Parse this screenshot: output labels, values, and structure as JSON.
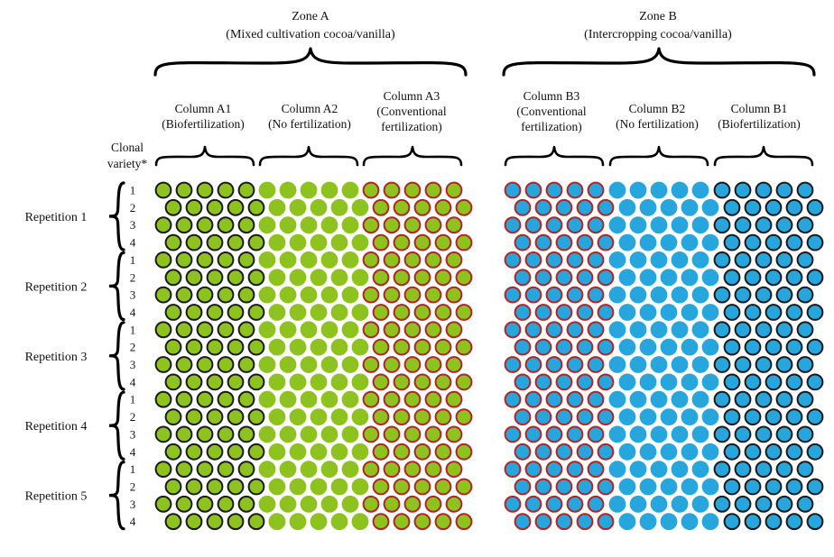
{
  "zones": [
    {
      "key": "A",
      "title": "Zone A",
      "subtitle": "(Mixed cultivation cocoa/vanilla)"
    },
    {
      "key": "B",
      "title": "Zone B",
      "subtitle": "(Intercropping cocoa/vanilla)"
    }
  ],
  "columns": [
    {
      "key": "A1",
      "lines": [
        "Column A1",
        "(Biofertilization)"
      ],
      "fill": "#8dc21f",
      "stroke": "#1a1a1a"
    },
    {
      "key": "A2",
      "lines": [
        "Column A2",
        "(No fertilization)"
      ],
      "fill": "#8dc21f",
      "stroke": "#8dc21f"
    },
    {
      "key": "A3",
      "lines": [
        "Column A3",
        "(Conventional",
        "fertilization)"
      ],
      "fill": "#8dc21f",
      "stroke": "#b32424"
    },
    {
      "key": "B3",
      "lines": [
        "Column B3",
        "(Conventional",
        "fertilization)"
      ],
      "fill": "#27a6dd",
      "stroke": "#b32424"
    },
    {
      "key": "B2",
      "lines": [
        "Column B2",
        "(No fertilization)"
      ],
      "fill": "#27a6dd",
      "stroke": "#27a6dd"
    },
    {
      "key": "B1",
      "lines": [
        "Column B1",
        "(Biofertilization)"
      ],
      "fill": "#27a6dd",
      "stroke": "#1a1a1a"
    }
  ],
  "clonal_label": [
    "Clonal",
    "variety*"
  ],
  "repetitions": [
    "Repetition 1",
    "Repetition 2",
    "Repetition 3",
    "Repetition 4",
    "Repetition 5"
  ],
  "variety_numbers": [
    "1",
    "2",
    "3",
    "4"
  ],
  "plants_per_column_row": 5
}
